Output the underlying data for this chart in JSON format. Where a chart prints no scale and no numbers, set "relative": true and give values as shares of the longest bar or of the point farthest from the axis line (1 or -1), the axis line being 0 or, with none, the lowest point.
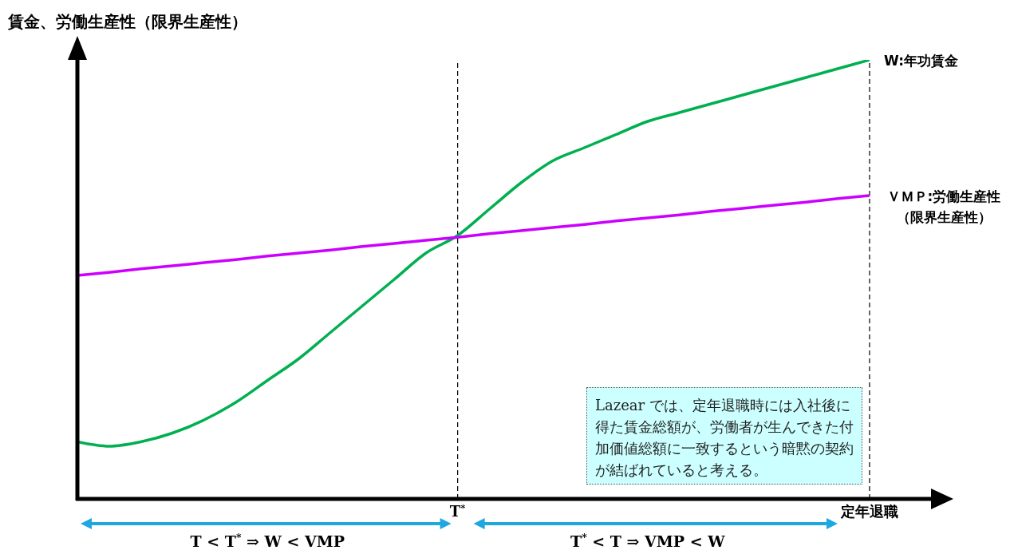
{
  "chart_data": {
    "type": "line",
    "relative": true,
    "ylabel": "賃金、労働生産性（限界生産性）",
    "categories": [
      null,
      null,
      null,
      null,
      null,
      null,
      null,
      null,
      null,
      null,
      null,
      null,
      "T$^{*}$",
      null,
      null,
      null,
      null,
      null,
      null,
      null,
      null,
      null,
      null,
      null,
      null,
      "定年退職"
    ],
    "series": [
      {
        "name": "W:年功賃金",
        "color": "#00b050",
        "values": [
          0.13,
          0.12,
          0.13,
          0.15,
          0.18,
          0.22,
          0.27,
          0.32,
          0.38,
          0.44,
          0.5,
          0.56,
          0.6,
          0.66,
          0.72,
          0.77,
          0.8,
          0.83,
          0.86,
          0.88,
          0.9,
          0.92,
          0.94,
          0.96,
          0.98,
          1
        ]
      },
      {
        "name": "ＶＭＰ:労働生産性（限界生産性）",
        "color": "#cc00ff",
        "values": [
          0.509,
          0.516,
          0.524,
          0.531,
          0.538,
          0.545,
          0.553,
          0.56,
          0.567,
          0.575,
          0.582,
          0.589,
          0.596,
          0.604,
          0.611,
          0.618,
          0.625,
          0.633,
          0.64,
          0.647,
          0.655,
          0.662,
          0.669,
          0.676,
          0.684,
          0.691
        ]
      }
    ],
    "ref_lines": [
      {
        "axis": "x",
        "value": "T$^{*}$",
        "line_style": "dashed",
        "color": "#000000"
      },
      {
        "axis": "x",
        "value": "定年退職",
        "line_style": "dashed",
        "color": "#000000"
      }
    ],
    "annotations": [
      "Lazear では、定年退職時には入社後に得た賃金総額が、労働者が生んできた付加価値総額に一致するという暗黙の契約が結ばれていると考える。",
      "T < T$^{*}$ ⇒ W < VMP",
      "T$^{*}$ < T ⇒ VMP < W"
    ],
    "legend": false,
    "grid": false,
    "marker": "none",
    "line_style": "solid"
  }
}
